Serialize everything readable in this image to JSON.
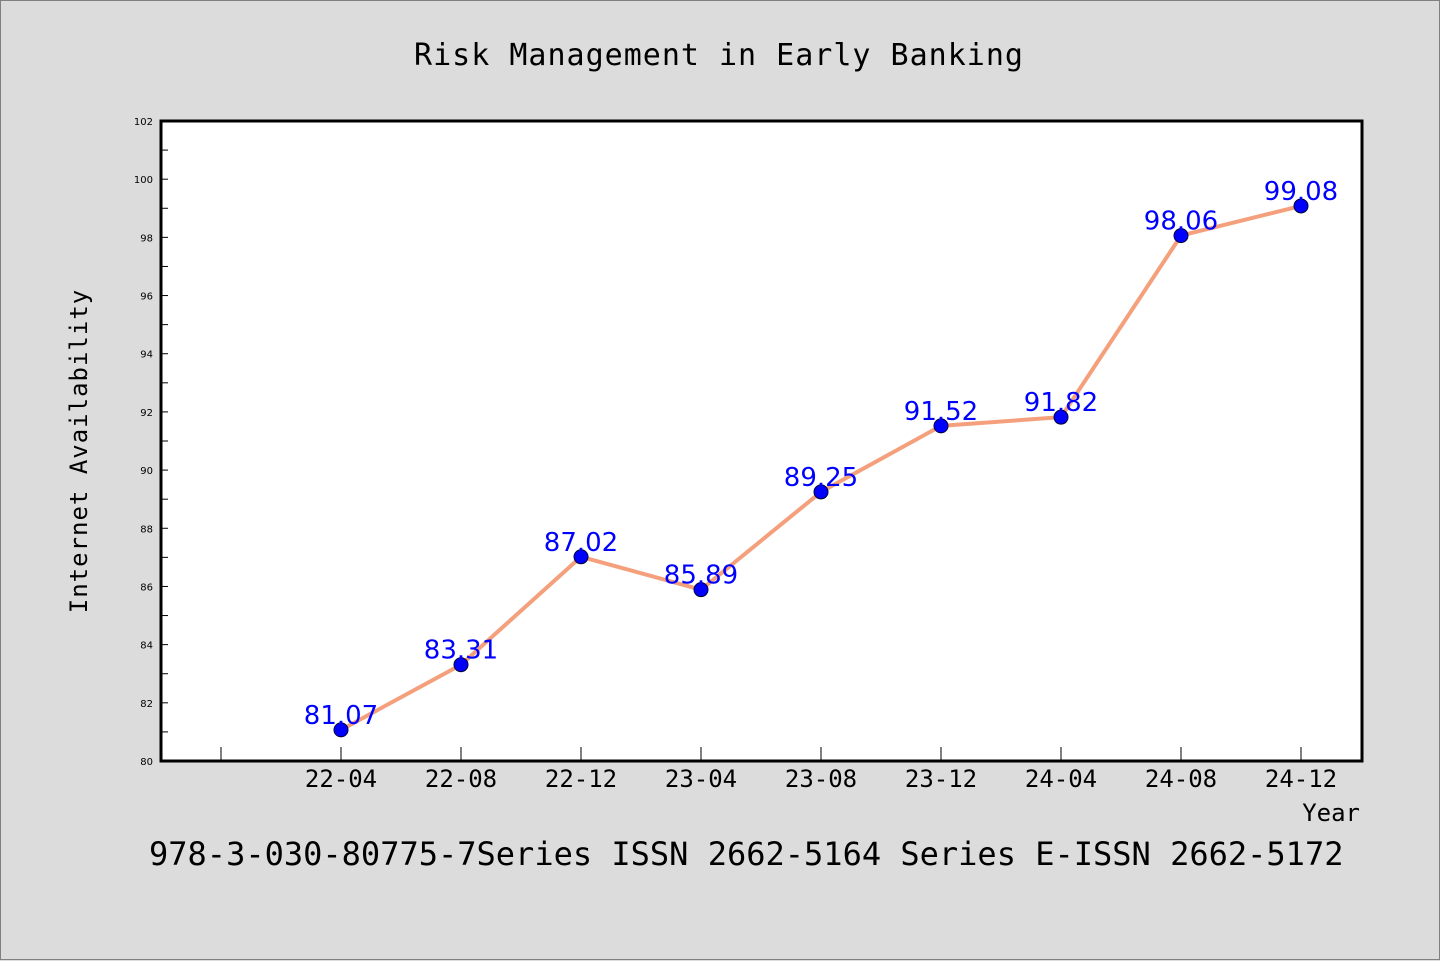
{
  "chart_data": {
    "type": "line",
    "title": "Risk Management in Early Banking",
    "xlabel": "Year",
    "ylabel": "Internet Availability",
    "categories": [
      "22-04",
      "22-08",
      "22-12",
      "23-04",
      "23-08",
      "23-12",
      "24-04",
      "24-08",
      "24-12"
    ],
    "series": [
      {
        "values": [
          81.07,
          83.31,
          87.02,
          85.89,
          89.25,
          91.52,
          91.82,
          98.06,
          99.08
        ]
      }
    ],
    "data_labels": [
      "81.07",
      "83.31",
      "87.02",
      "85.89",
      "89.25",
      "91.52",
      "91.82",
      "98.06",
      "99.08"
    ],
    "ylim": [
      80,
      102
    ],
    "yticks": [
      80,
      82,
      84,
      86,
      88,
      90,
      92,
      94,
      96,
      98,
      100,
      102
    ],
    "grid": false,
    "colors": {
      "line": "#f4a07c",
      "marker": "#0000ff",
      "label": "#0000ff",
      "background": "#dcdcdc",
      "plot": "#ffffff"
    }
  },
  "footer": "978-3-030-80775-7Series ISSN 2662-5164 Series E-ISSN 2662-5172"
}
